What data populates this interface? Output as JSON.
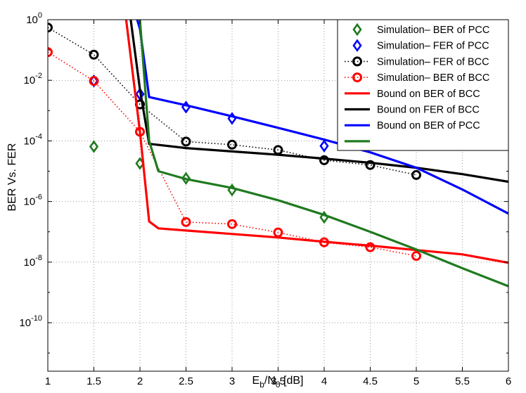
{
  "chart_data": {
    "type": "line",
    "xlabel": "E_b/N_0 [dB]",
    "xlabel_main": "E",
    "xlabel_sub1": "b",
    "xlabel_mid": "/N",
    "xlabel_sub2": "0",
    "xlabel_tail": " [dB]",
    "ylabel": "BER Vs. FER",
    "xlim": [
      1,
      6
    ],
    "ylim_log10": [
      -11.6,
      0
    ],
    "y_scale": "log",
    "grid": true,
    "legend_position": "top-right",
    "x_ticks": [
      1,
      1.5,
      2,
      2.5,
      3,
      3.5,
      4,
      4.5,
      5,
      5.5,
      6
    ],
    "x_tick_labels": [
      "1",
      "1.5",
      "2",
      "2.5",
      "3",
      "3.5",
      "4",
      "4.5",
      "5",
      "5.5",
      "6"
    ],
    "y_ticks": [
      {
        "exp": 0,
        "base": "10",
        "sup": "0"
      },
      {
        "exp": -2,
        "base": "10",
        "sup": "-2"
      },
      {
        "exp": -4,
        "base": "10",
        "sup": "-4"
      },
      {
        "exp": -6,
        "base": "10",
        "sup": "-6"
      },
      {
        "exp": -8,
        "base": "10",
        "sup": "-8"
      },
      {
        "exp": -10,
        "base": "10",
        "sup": "-10"
      }
    ],
    "series": [
      {
        "name": "Simulation– BER of PCC",
        "color": "#1f7a1f",
        "marker": "diamond",
        "line": "none",
        "points": [
          [
            1.5,
            6.5e-05
          ],
          [
            2.0,
            1.8e-05
          ],
          [
            2.5,
            5.8e-06
          ],
          [
            3.0,
            2.4e-06
          ],
          [
            4.0,
            3e-07
          ]
        ]
      },
      {
        "name": "Simulation– FER of PCC",
        "color": "#0000ff",
        "marker": "diamond",
        "line": "none",
        "points": [
          [
            1.5,
            0.0095
          ],
          [
            2.0,
            0.0035
          ],
          [
            2.5,
            0.0013
          ],
          [
            3.0,
            0.00055
          ],
          [
            4.0,
            6.8e-05
          ]
        ]
      },
      {
        "name": "Simulation– FER of BCC",
        "color": "#000000",
        "marker": "circle",
        "line": "dotted",
        "points": [
          [
            1.0,
            0.55
          ],
          [
            1.5,
            0.07
          ],
          [
            2.0,
            0.0016
          ],
          [
            2.5,
            9.5e-05
          ],
          [
            3.0,
            7.5e-05
          ],
          [
            3.5,
            5e-05
          ],
          [
            4.0,
            2.3e-05
          ],
          [
            4.5,
            1.6e-05
          ],
          [
            5.0,
            7.5e-06
          ]
        ]
      },
      {
        "name": "Simulation– BER of BCC",
        "color": "#ff0000",
        "marker": "circle",
        "line": "dotted",
        "points": [
          [
            1.0,
            0.085
          ],
          [
            1.5,
            0.0095
          ],
          [
            2.0,
            0.0002
          ],
          [
            2.5,
            2.1e-07
          ],
          [
            3.0,
            1.8e-07
          ],
          [
            3.5,
            9.5e-08
          ],
          [
            4.0,
            4.5e-08
          ],
          [
            4.5,
            3.1e-08
          ],
          [
            5.0,
            1.6e-08
          ]
        ]
      },
      {
        "name": "Bound on  BER of BCC",
        "color": "#ff0000",
        "marker": "none",
        "line": "solid",
        "points": [
          [
            1.85,
            1.0
          ],
          [
            2.0,
            0.0002
          ],
          [
            2.1,
            2.2e-07
          ],
          [
            2.2,
            1.3e-07
          ],
          [
            2.5,
            1.1e-07
          ],
          [
            3.0,
            8.5e-08
          ],
          [
            3.5,
            6.5e-08
          ],
          [
            4.0,
            4.7e-08
          ],
          [
            4.5,
            3.5e-08
          ],
          [
            5.0,
            2.5e-08
          ],
          [
            5.5,
            1.8e-08
          ],
          [
            6.0,
            9.5e-09
          ]
        ]
      },
      {
        "name": "Bound on FER of BCC",
        "color": "#000000",
        "marker": "none",
        "line": "solid",
        "points": [
          [
            1.9,
            1.0
          ],
          [
            2.0,
            0.005
          ],
          [
            2.1,
            8e-05
          ],
          [
            2.5,
            5.8e-05
          ],
          [
            3.0,
            4.5e-05
          ],
          [
            3.5,
            3.5e-05
          ],
          [
            4.0,
            2.6e-05
          ],
          [
            4.5,
            1.9e-05
          ],
          [
            5.0,
            1.3e-05
          ],
          [
            5.5,
            8e-06
          ],
          [
            6.0,
            4.5e-06
          ]
        ]
      },
      {
        "name": "Bound on BER of PCC",
        "color": "#0000ff",
        "marker": "none",
        "line": "solid",
        "points": [
          [
            1.97,
            1.0
          ],
          [
            2.0,
            0.5
          ],
          [
            2.1,
            0.0028
          ],
          [
            2.5,
            0.0015
          ],
          [
            3.0,
            0.00065
          ],
          [
            3.5,
            0.00027
          ],
          [
            4.0,
            0.00011
          ],
          [
            4.5,
            4.2e-05
          ],
          [
            5.0,
            1.3e-05
          ],
          [
            5.5,
            2.5e-06
          ],
          [
            6.0,
            4e-07
          ]
        ]
      },
      {
        "name": "",
        "color": "#1f7a1f",
        "marker": "none",
        "line": "solid",
        "points": [
          [
            2.0,
            1.0
          ],
          [
            2.1,
            0.0001
          ],
          [
            2.2,
            1e-05
          ],
          [
            2.5,
            5.5e-06
          ],
          [
            3.0,
            2.8e-06
          ],
          [
            3.5,
            1.1e-06
          ],
          [
            4.0,
            3.6e-07
          ],
          [
            4.5,
            1e-07
          ],
          [
            5.0,
            2.6e-08
          ],
          [
            5.5,
            6.3e-09
          ],
          [
            6.0,
            1.6e-09
          ]
        ]
      }
    ]
  }
}
